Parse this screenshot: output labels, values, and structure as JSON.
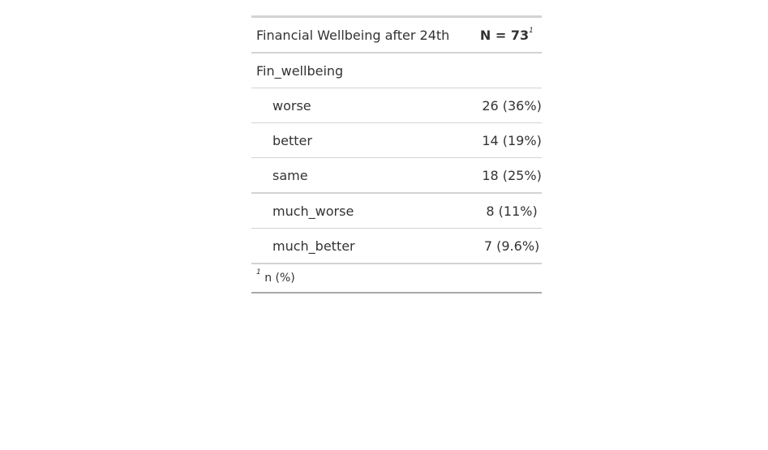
{
  "chart_data": {
    "type": "table",
    "header": {
      "label": "Financial Wellbeing after 24th",
      "n_label": "N = 73",
      "footnote_mark": "1"
    },
    "variable": "Fin_wellbeing",
    "rows": [
      {
        "label": "worse",
        "count": 26,
        "percent": 36,
        "display": "26 (36%)"
      },
      {
        "label": "better",
        "count": 14,
        "percent": 19,
        "display": "14 (19%)"
      },
      {
        "label": "same",
        "count": 18,
        "percent": 25,
        "display": "18 (25%)"
      },
      {
        "label": "much_worse",
        "count": 8,
        "percent": 11,
        "display": "8 (11%)"
      },
      {
        "label": "much_better",
        "count": 7,
        "percent": 9.6,
        "display": "7 (9.6%)"
      }
    ],
    "footnote": {
      "mark": "1",
      "text": "n (%)"
    }
  }
}
